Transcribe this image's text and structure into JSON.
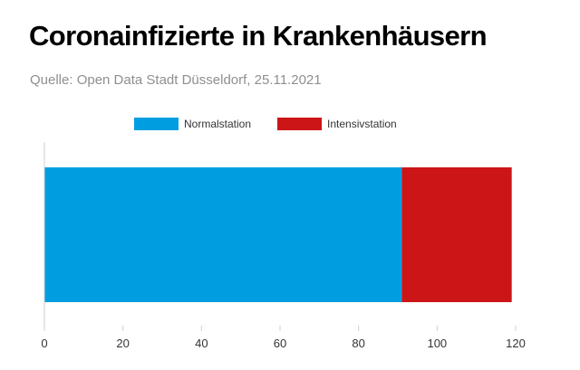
{
  "header": {
    "title": "Coronainfizierte in Krankenhäusern",
    "source": "Quelle: Open Data Stadt Düsseldorf, 25.11.2021"
  },
  "chart_data": {
    "type": "bar",
    "orientation": "horizontal",
    "stacked": true,
    "categories": [
      ""
    ],
    "series": [
      {
        "name": "Normalstation",
        "values": [
          91
        ],
        "color": "#009ee0"
      },
      {
        "name": "Intensivstation",
        "values": [
          28
        ],
        "color": "#cc1517"
      }
    ],
    "xlim": [
      0,
      120
    ],
    "xticks": [
      0,
      20,
      40,
      60,
      80,
      100,
      120
    ],
    "grid": false,
    "legend": "top-center"
  }
}
